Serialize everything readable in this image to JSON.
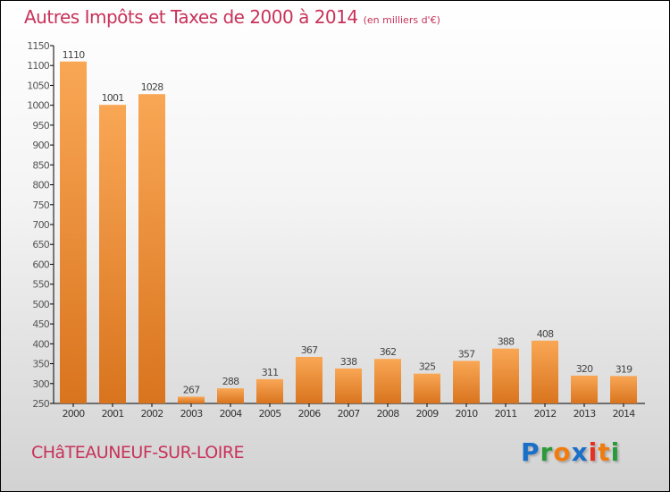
{
  "title": "Autres Impôts et Taxes de 2000 à 2014",
  "unit": "(en milliers d'€)",
  "town": "CHâTEAUNEUF-SUR-LOIRE",
  "logo": "Proxiti",
  "colors": {
    "bar_top": "#f9a755",
    "bar_bottom": "#d9741e",
    "title": "#c8325a"
  },
  "chart_data": {
    "type": "bar",
    "title": "Autres Impôts et Taxes de 2000 à 2014",
    "categories": [
      "2000",
      "2001",
      "2002",
      "2003",
      "2004",
      "2005",
      "2006",
      "2007",
      "2008",
      "2009",
      "2010",
      "2011",
      "2012",
      "2013",
      "2014"
    ],
    "values": [
      1110,
      1001,
      1028,
      267,
      288,
      311,
      367,
      338,
      362,
      325,
      357,
      388,
      408,
      320,
      319
    ],
    "ylim": [
      250,
      1150
    ],
    "ystep": 50,
    "xlabel": "",
    "ylabel": "",
    "grid": false
  }
}
